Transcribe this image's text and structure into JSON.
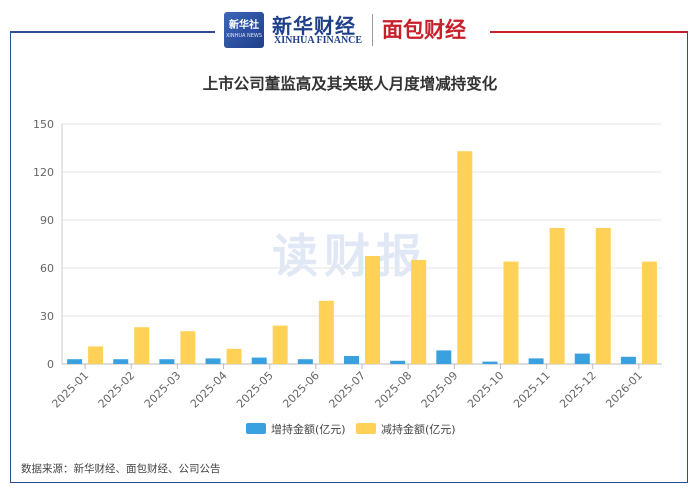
{
  "header": {
    "logo_text": "新华社",
    "logo_subtext": "XINHUA NEWS",
    "brand_cn": "新华财经",
    "brand_en": "XINHUA FINANCE",
    "partner": "面包财经"
  },
  "watermark": "读财报",
  "source_label": "数据来源：",
  "source_text": "新华财经、面包财经、公司公告",
  "colors": {
    "increase": "#3aa1e0",
    "decrease": "#ffd257",
    "frame_blue": "#2b4d96",
    "frame_red": "#c8202a"
  },
  "chart_data": {
    "type": "bar",
    "title": "上市公司董监高及其关联人月度增减持变化",
    "categories": [
      "2025-01",
      "2025-02",
      "2025-03",
      "2025-04",
      "2025-05",
      "2025-06",
      "2025-07",
      "2025-08",
      "2025-09",
      "2025-10",
      "2025-11",
      "2025-12",
      "2026-01"
    ],
    "series": [
      {
        "name": "增持金额(亿元)",
        "values": [
          3,
          3,
          3,
          3.5,
          4,
          3,
          5,
          2,
          8.5,
          1.5,
          3.5,
          6.5,
          4.5
        ]
      },
      {
        "name": "减持金额(亿元)",
        "values": [
          11,
          23,
          20.5,
          9.5,
          24,
          39.5,
          67.5,
          65,
          133,
          64,
          85,
          85,
          64
        ]
      }
    ],
    "yticks": [
      0,
      30,
      60,
      90,
      120,
      150
    ],
    "ylim": [
      0,
      150
    ],
    "grid": true,
    "legend": "bottom"
  }
}
